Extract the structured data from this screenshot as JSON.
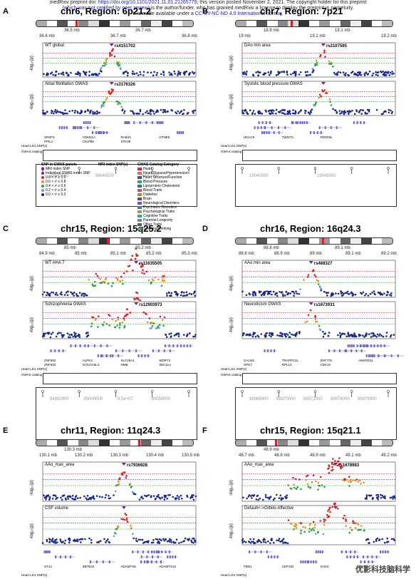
{
  "header": {
    "line1": "medRxiv preprint doi: ",
    "doi": "https://doi.org/10.1101/2021.11.01.21265779",
    "line1b": "; this version posted November 2, 2021. The copyright holder for this preprint",
    "line2a": "(which was not certified by peer review)",
    "line2b": " is the author/funder, who has granted medRxiv a license to display the preprint in perpetuity.",
    "line3a": "It is made available under a ",
    "license": "CC-BY-NC-ND 4.0 International license",
    "line3b": "."
  },
  "panels": [
    {
      "id": "A",
      "title": "chr6, Region: 6p21.2",
      "ticks_top": [
        "36.5 mb",
        "36.7 mb"
      ],
      "ticks_bot": [
        "36.6 mb",
        "36.7 mb",
        "36.8 mb"
      ],
      "trait1": "WT global",
      "snp1": "rs4151702",
      "trait2": "Atrial fibrillation GWAS",
      "snp2": "rs3176326",
      "genes": [
        "SRSF3",
        "CDKN1A",
        "RAB44",
        "CPNE5",
        "PPIL1",
        "C6orf89",
        "STK38"
      ],
      "catalog_ticks": [
        "36645500",
        "36646500",
        "36647000"
      ]
    },
    {
      "id": "B",
      "title": "chr7, Region: 7p21",
      "ticks_top": [
        "18.9 mb",
        "19.1 mb"
      ],
      "ticks_bot": [
        "19 mb",
        "19.1 mb",
        "19.2 mb"
      ],
      "trait1": "DAo min area",
      "snp1": "rs2107595",
      "trait2": "Systolic blood pressure GWAS",
      "snp2": "",
      "genes": [
        "HDAC9",
        "TWIST1",
        "FERD3L"
      ],
      "catalog_ticks": [
        "19040000",
        "19045000"
      ]
    },
    {
      "id": "C",
      "title": "chr15, Region: 15q25.2",
      "ticks_top": [
        "85 mb",
        "85.2 mb"
      ],
      "ticks_bot": [
        "84.9 mb",
        "85 mb",
        "85.1 mb",
        "85.2 mb",
        "85.3 mb"
      ],
      "trait1": "WT AHA 7",
      "snp1": "rs11635505",
      "trait2": "Schizophrenia GWAS",
      "snp2": "rs12903973",
      "genes": [
        "ZNF592",
        "ALPK3",
        "SLC28A1",
        "WDR73",
        "ZNF592",
        "GOLGA6L4",
        "NMB",
        "SEC11A"
      ],
      "catalog_ticks": [
        "84950000",
        "85000000",
        "8.5e+07",
        "85050000"
      ]
    },
    {
      "id": "D",
      "title": "chr16, Region: 16q24.3",
      "ticks_top": [
        "88.8 mb",
        "89.1 mb"
      ],
      "ticks_bot": [
        "88.8 mb",
        "88.9 mb",
        "89 mb",
        "89.1 mb",
        "89.2 mb"
      ],
      "trait1": "AAo min area",
      "snp1": "rs488327",
      "trait2": "Neuroticism GWAS",
      "snp2": "rs1673931",
      "genes": [
        "GALNS",
        "TRAPPC2L",
        "ZNF778",
        "ANKRD11",
        "SPG7",
        "RPL13",
        "CDK10"
      ],
      "catalog_ticks": [
        "88968000",
        "88970000",
        "88972000",
        "88974000",
        "88976000"
      ]
    },
    {
      "id": "E",
      "title": "chr11, Region: 11q24.3",
      "ticks_top": [
        "130.3 mb"
      ],
      "ticks_bot": [
        "130.1 mb",
        "130.2 mb",
        "130.3 mb",
        "130.4 mb",
        "130.5 mb"
      ],
      "trait1": "AAo_max_area",
      "snp1": "rs7936928",
      "trait2": "CSF volume",
      "snp2": "",
      "genes": [
        "ST14",
        "ZBTB44",
        "ADAMTS8",
        "ADAMTS15"
      ],
      "catalog_ticks": []
    },
    {
      "id": "F",
      "title": "chr15, Region: 15q21.1",
      "ticks_top": [
        "48.9 mb"
      ],
      "ticks_bot": [
        "48.7 mb",
        "48.8 mb",
        "48.9 mb",
        "49.1 mb",
        "49.2 mb"
      ],
      "trait1": "AAo_max_area",
      "snp1": "rs1678983",
      "trait2": "Default<->Orbito-Affective",
      "snp2": "",
      "genes": [
        "FBN1",
        "CEP152",
        "SHC4",
        "DUT"
      ],
      "catalog_ticks": []
    }
  ],
  "axis": {
    "ylabel": "-log₁₀(p)",
    "ld_label": "Heart LD1 SNP(s)",
    "gwas_catalog": "GWAS catalog"
  },
  "legend": {
    "snp_title": "SNP in GWAS panels",
    "snp_items": [
      "MRI index SNP",
      "Individual GWAS index SNP",
      "0.8 < r² ≤ 1.0",
      "0.6 < r² ≤ 0.8",
      "0.4 < r² ≤ 0.6",
      "0.2 < r² ≤ 0.4",
      "0.0 < r² ≤ 0.2"
    ],
    "mri_title": "MRI index SNP(s)",
    "cat_title": "GWAS Catalog Category",
    "categories": [
      "Heart",
      "Heart Disease/Hypertension",
      "Heart Structure/Function",
      "Blood Pressure",
      "Lipoprotein Cholesterol",
      "Blood Traits",
      "Diabetes",
      "Brain",
      "Neurological Disorders",
      "Psychiatric Disorders",
      "Psychological Traits",
      "Cognitive Traits",
      "Parental Longevity",
      "Other Traits",
      "Smoking/Drinking"
    ],
    "cat_colors": [
      "#c0303a",
      "#e07040",
      "#2060a0",
      "#40a060",
      "#2b7a7a",
      "#d05060",
      "#c08030",
      "#6040a0",
      "#8050a0",
      "#5070c0",
      "#a0a040",
      "#30a0c0",
      "#808080",
      "#506070",
      "#70a070"
    ]
  },
  "watermark": "优影科技脑科学",
  "colors": {
    "sig_red": "#e02020",
    "sig_blue": "#2030c0",
    "sig_green": "#20a020",
    "dot": "#1a2a8a"
  }
}
